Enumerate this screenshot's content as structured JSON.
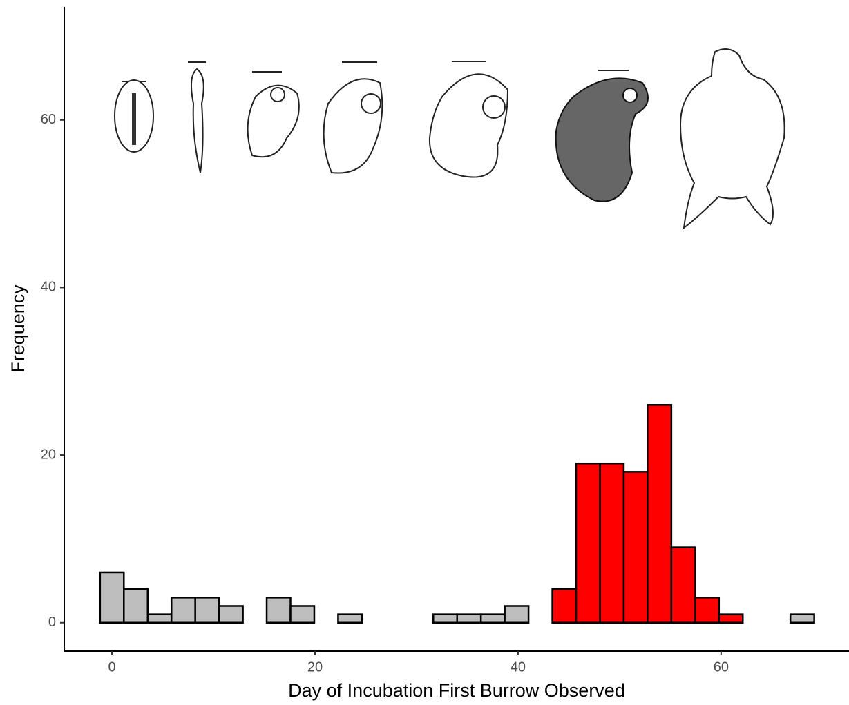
{
  "chart_data": {
    "type": "histogram",
    "x_label": "Day of Incubation First Burrow Observed",
    "y_label": "Frequency",
    "bins": [
      -1.172,
      1.172,
      3.517,
      5.862,
      8.207,
      10.552,
      12.897,
      15.241,
      17.586,
      19.931,
      22.276,
      24.621,
      26.966,
      29.31,
      31.655,
      34.0,
      36.345,
      38.69,
      41.034,
      43.379,
      45.724,
      48.069,
      50.414,
      52.759,
      55.103,
      57.448,
      59.793,
      62.138,
      64.483,
      66.828,
      69.172
    ],
    "values": [
      6,
      4,
      1,
      3,
      3,
      2,
      0,
      3,
      2,
      0,
      1,
      0,
      0,
      0,
      1,
      1,
      1,
      2,
      0,
      4,
      19,
      19,
      18,
      26,
      9,
      3,
      1,
      0,
      0,
      1
    ],
    "colors": [
      "#bebebe",
      "#bebebe",
      "#bebebe",
      "#bebebe",
      "#bebebe",
      "#bebebe",
      "#bebebe",
      "#bebebe",
      "#bebebe",
      "#bebebe",
      "#bebebe",
      "#bebebe",
      "#bebebe",
      "#bebebe",
      "#bebebe",
      "#bebebe",
      "#bebebe",
      "#bebebe",
      "#bebebe",
      "#ff0000",
      "#ff0000",
      "#ff0000",
      "#ff0000",
      "#ff0000",
      "#ff0000",
      "#ff0000",
      "#ff0000",
      "#bebebe",
      "#bebebe",
      "#bebebe"
    ],
    "xlim": [
      -4.7,
      72.6
    ],
    "xticks": [
      0,
      20,
      40,
      60
    ],
    "ylim": [
      -3.4,
      73.5
    ],
    "yticks": [
      0,
      20,
      40,
      60
    ],
    "grid": false
  }
}
